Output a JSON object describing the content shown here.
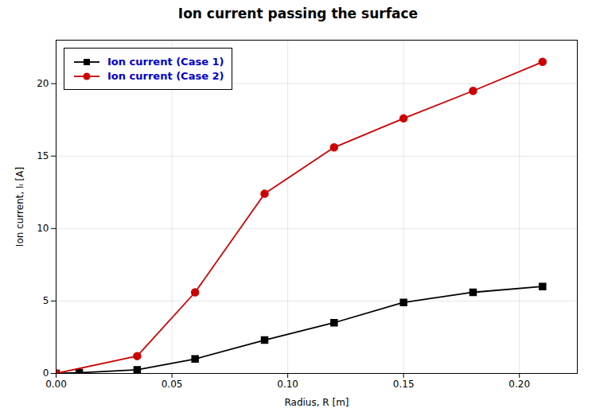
{
  "chart_data": {
    "type": "line",
    "title": "Ion current passing the surface",
    "xlabel": "Radius, R [m]",
    "ylabel": "Ion current, Iᵢ [A]",
    "series": [
      {
        "name": "Ion current (Case 1)",
        "color": "#000000",
        "marker": "square",
        "x": [
          0.0,
          0.01,
          0.035,
          0.06,
          0.09,
          0.12,
          0.15,
          0.18,
          0.21
        ],
        "values": [
          0.0,
          0.05,
          0.25,
          1.0,
          2.3,
          3.5,
          4.9,
          5.6,
          6.0
        ]
      },
      {
        "name": "Ion current (Case 2)",
        "color": "#cc0000",
        "marker": "circle",
        "x": [
          0.0,
          0.035,
          0.06,
          0.09,
          0.12,
          0.15,
          0.18,
          0.21
        ],
        "values": [
          0.0,
          1.2,
          5.6,
          12.4,
          15.6,
          17.6,
          19.5,
          21.5
        ]
      }
    ],
    "xlim": [
      0.0,
      0.225
    ],
    "ylim": [
      0,
      23
    ],
    "xticks": [
      {
        "value": 0.0,
        "label": "0.00"
      },
      {
        "value": 0.05,
        "label": "0.05"
      },
      {
        "value": 0.1,
        "label": "0.10"
      },
      {
        "value": 0.15,
        "label": "0.15"
      },
      {
        "value": 0.2,
        "label": "0.20"
      }
    ],
    "yticks": [
      0,
      5,
      10,
      15,
      20
    ],
    "grid": true,
    "legend": "upper left"
  }
}
